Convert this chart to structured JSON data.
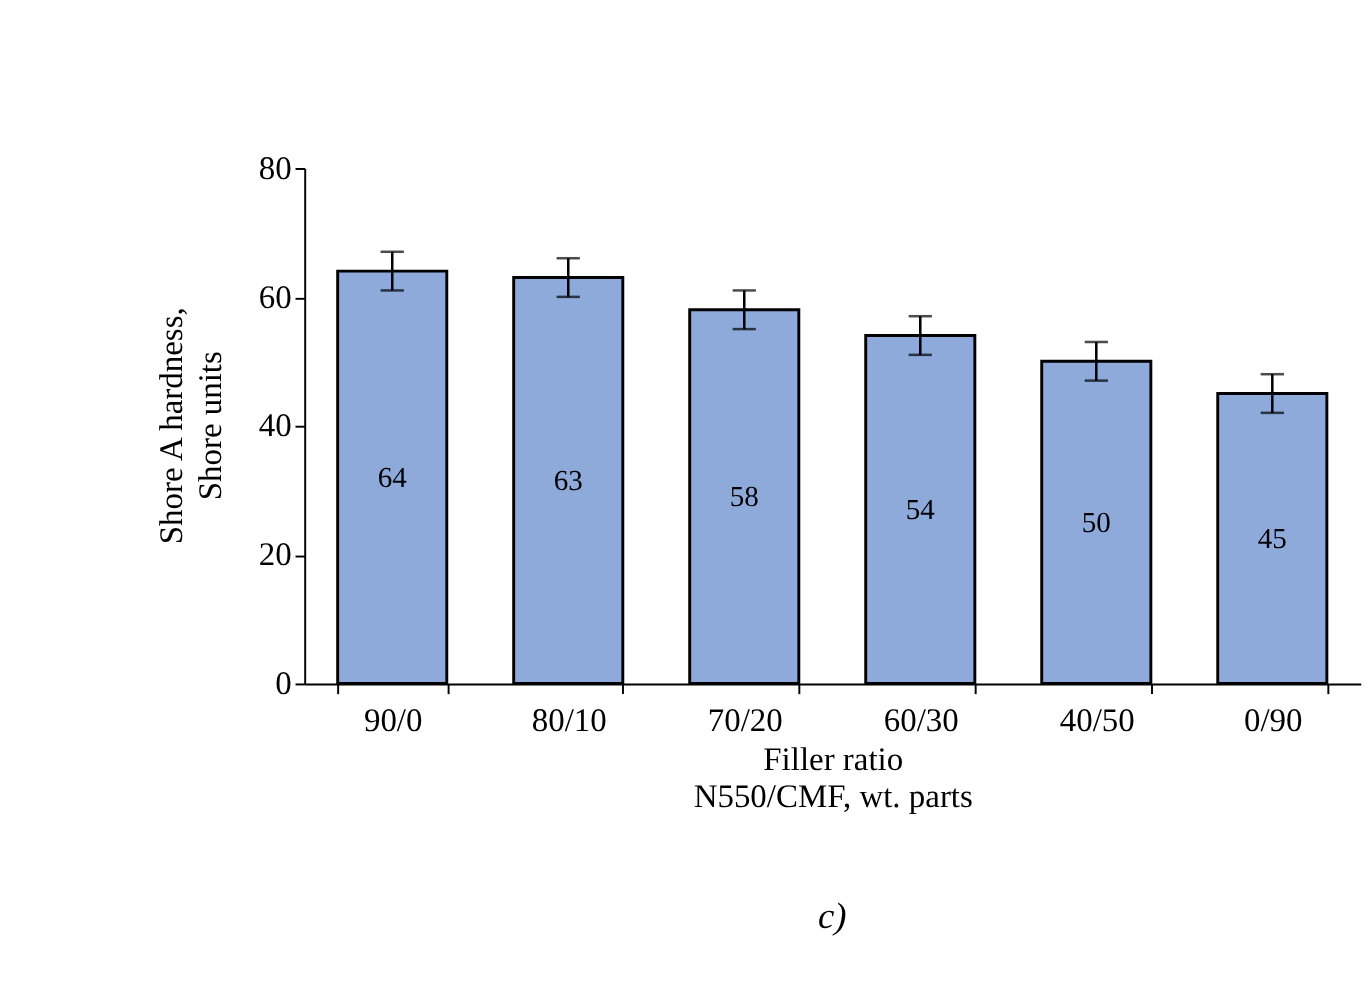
{
  "chart_data": {
    "type": "bar",
    "categories": [
      "90/0",
      "80/10",
      "70/20",
      "60/30",
      "40/50",
      "0/90"
    ],
    "values": [
      64,
      63,
      58,
      54,
      50,
      45
    ],
    "errors": [
      3,
      3,
      3,
      3,
      3,
      3
    ],
    "color": "#8eaadb",
    "ylim": [
      0,
      80
    ],
    "yticks": [
      0,
      20,
      40,
      60,
      80
    ],
    "xlabel": "Filler ratio\nN550/CMF, wt. parts",
    "ylabel": "Shore A hardness,\nShore units",
    "data_labels": true,
    "grid": false,
    "annotations": [
      "c)"
    ]
  }
}
